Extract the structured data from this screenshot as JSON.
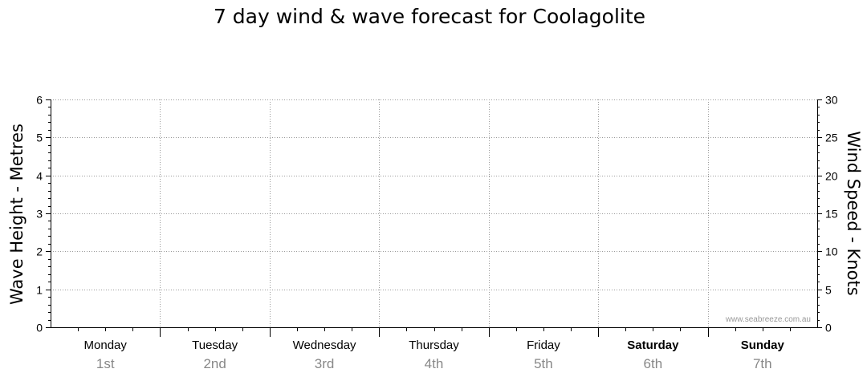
{
  "chart_data": {
    "type": "line",
    "title": "7 day wind & wave forecast for Coolagolite",
    "left_axis": {
      "label": "Wave Height - Metres",
      "ylim": [
        0,
        6
      ],
      "ticks": [
        "0",
        "1",
        "2",
        "3",
        "4",
        "5",
        "6"
      ]
    },
    "right_axis": {
      "label": "Wind Speed - Knots",
      "ylim": [
        0,
        30
      ],
      "ticks": [
        "0",
        "5",
        "10",
        "15",
        "20",
        "25",
        "30"
      ]
    },
    "days": [
      {
        "name": "Monday",
        "date": "1st",
        "bold": false
      },
      {
        "name": "Tuesday",
        "date": "2nd",
        "bold": false
      },
      {
        "name": "Wednesday",
        "date": "3rd",
        "bold": false
      },
      {
        "name": "Thursday",
        "date": "4th",
        "bold": false
      },
      {
        "name": "Friday",
        "date": "5th",
        "bold": false
      },
      {
        "name": "Saturday",
        "date": "6th",
        "bold": true
      },
      {
        "name": "Sunday",
        "date": "7th",
        "bold": true
      }
    ],
    "series": [],
    "grid": true,
    "watermark": "www.seabreeze.com.au"
  }
}
